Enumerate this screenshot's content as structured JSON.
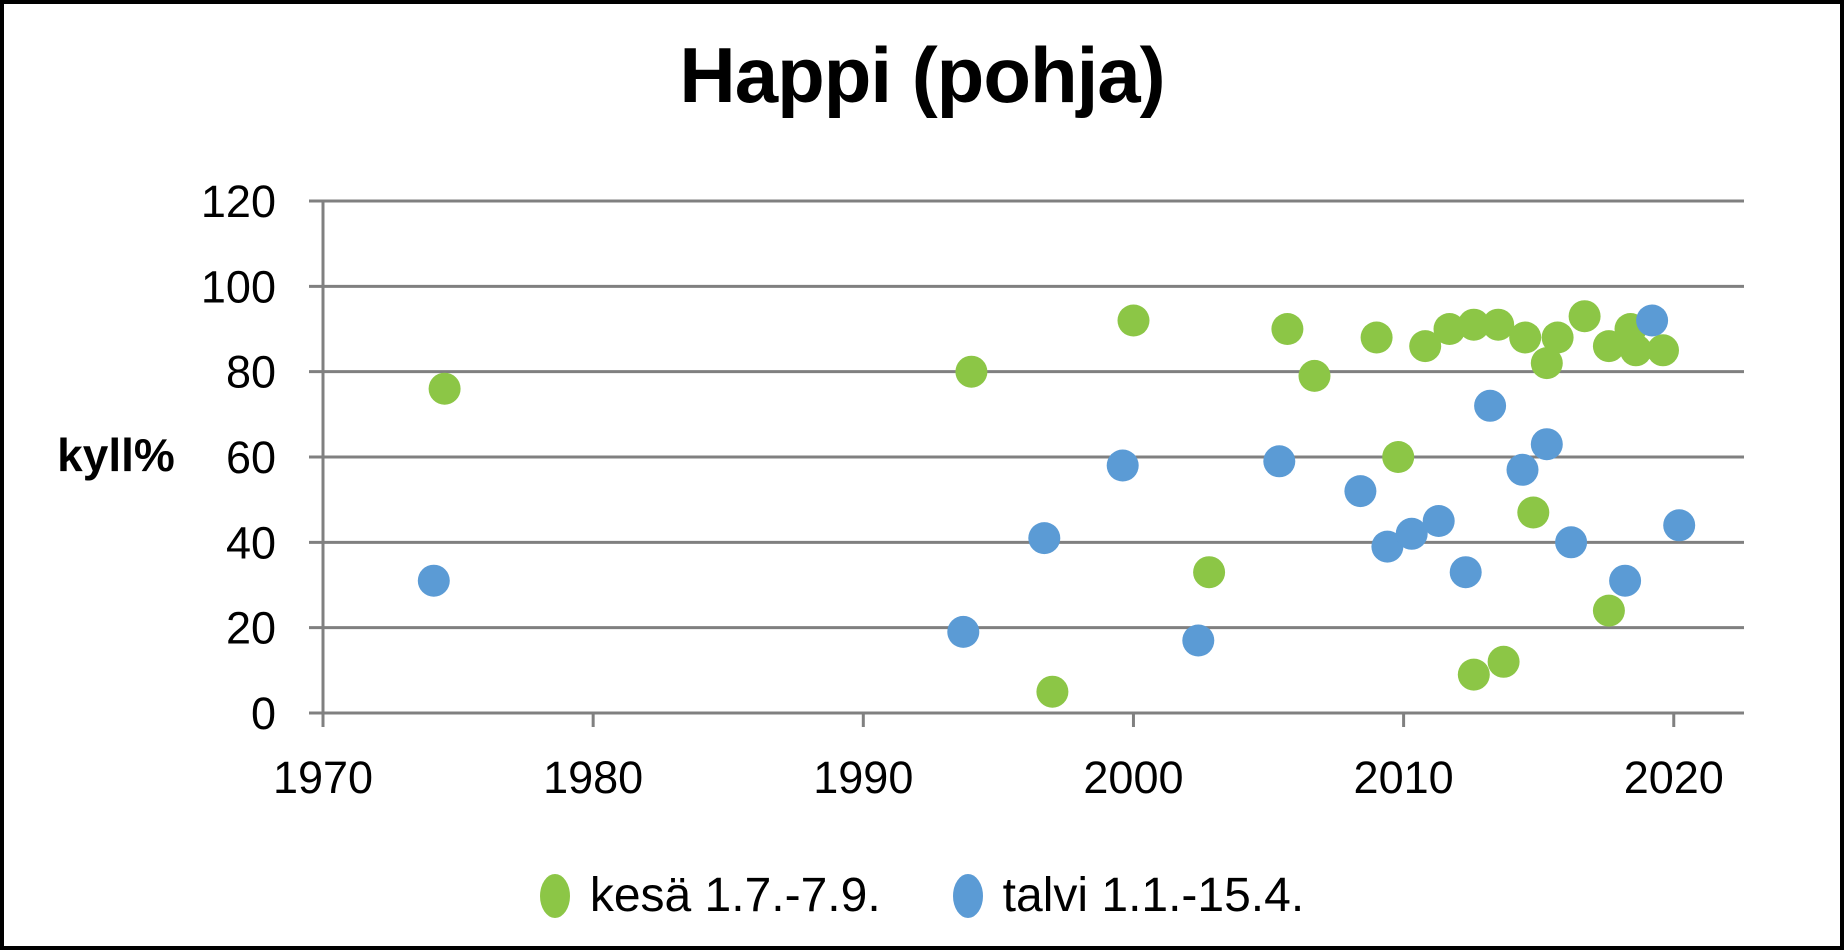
{
  "chart_data": {
    "type": "scatter",
    "title": "Happi (pohja)",
    "ylabel": "kyll%",
    "xlabel": "",
    "xlim": [
      1970,
      2022.6
    ],
    "ylim": [
      0,
      120
    ],
    "x_ticks": [
      1970,
      1980,
      1990,
      2000,
      2010,
      2020
    ],
    "y_ticks": [
      0,
      20,
      40,
      60,
      80,
      100,
      120
    ],
    "grid": "horizontal",
    "legend_position": "bottom",
    "marker_radius_px": 16,
    "colors": {
      "gridline": "#808080",
      "axis": "#808080",
      "text": "#000000",
      "background": "#FFFFFF",
      "border": "#000000"
    },
    "series": [
      {
        "name": "kesä 1.7.-7.9.",
        "color": "#8CC646",
        "points": [
          [
            1974.5,
            76
          ],
          [
            1994.0,
            80
          ],
          [
            1997.0,
            5
          ],
          [
            2000.0,
            92
          ],
          [
            2002.8,
            33
          ],
          [
            2005.7,
            90
          ],
          [
            2006.7,
            79
          ],
          [
            2009.0,
            88
          ],
          [
            2009.8,
            60
          ],
          [
            2010.8,
            86
          ],
          [
            2011.7,
            90
          ],
          [
            2012.6,
            91
          ],
          [
            2012.6,
            9
          ],
          [
            2013.5,
            91
          ],
          [
            2013.7,
            12
          ],
          [
            2014.5,
            88
          ],
          [
            2014.8,
            47
          ],
          [
            2015.3,
            82
          ],
          [
            2015.7,
            88
          ],
          [
            2016.7,
            93
          ],
          [
            2017.6,
            86
          ],
          [
            2017.6,
            24
          ],
          [
            2018.4,
            90
          ],
          [
            2018.6,
            85
          ],
          [
            2019.6,
            85
          ]
        ]
      },
      {
        "name": "talvi 1.1.-15.4.",
        "color": "#5B9BD5",
        "points": [
          [
            1974.1,
            31
          ],
          [
            1993.7,
            19
          ],
          [
            1996.7,
            41
          ],
          [
            1999.6,
            58
          ],
          [
            2002.4,
            17
          ],
          [
            2005.4,
            59
          ],
          [
            2008.4,
            52
          ],
          [
            2009.4,
            39
          ],
          [
            2010.3,
            42
          ],
          [
            2011.3,
            45
          ],
          [
            2012.3,
            33
          ],
          [
            2013.2,
            72
          ],
          [
            2014.4,
            57
          ],
          [
            2015.3,
            63
          ],
          [
            2016.2,
            40
          ],
          [
            2018.2,
            31
          ],
          [
            2019.2,
            92
          ],
          [
            2020.2,
            44
          ]
        ]
      }
    ]
  }
}
